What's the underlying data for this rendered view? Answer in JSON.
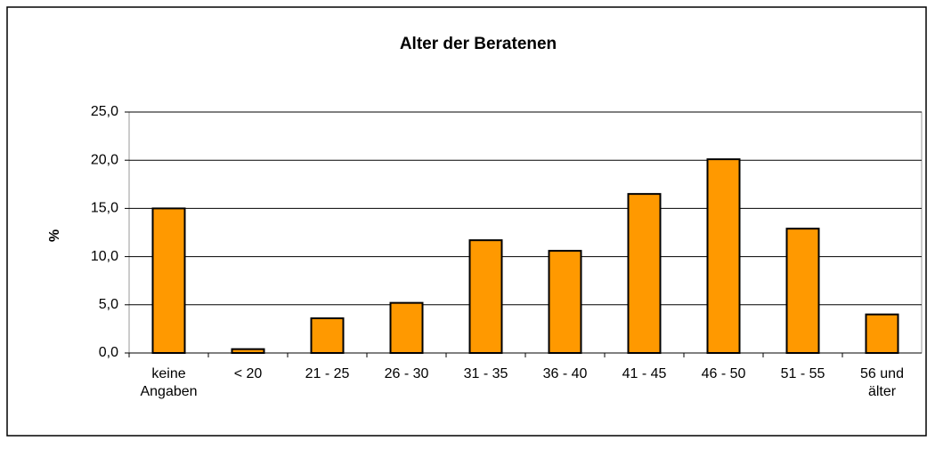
{
  "chart_data": {
    "type": "bar",
    "title": "Alter der Beratenen",
    "y_label": "%",
    "categories": [
      "keine\nAngaben",
      "< 20",
      "21 - 25",
      "26 - 30",
      "31 - 35",
      "36 - 40",
      "41 - 45",
      "46 - 50",
      "51 - 55",
      "56 und\nälter"
    ],
    "values": [
      15.0,
      0.4,
      3.6,
      5.2,
      11.7,
      10.6,
      16.5,
      20.1,
      12.9,
      4.0
    ],
    "color": "#ff9900",
    "ylim": [
      0,
      25
    ],
    "yticks": [
      {
        "value": 0,
        "label": "0,0"
      },
      {
        "value": 5,
        "label": "5,0"
      },
      {
        "value": 10,
        "label": "10,0"
      },
      {
        "value": 15,
        "label": "15,0"
      },
      {
        "value": 20,
        "label": "20,0"
      },
      {
        "value": 25,
        "label": "25,0"
      }
    ],
    "grid": true
  }
}
